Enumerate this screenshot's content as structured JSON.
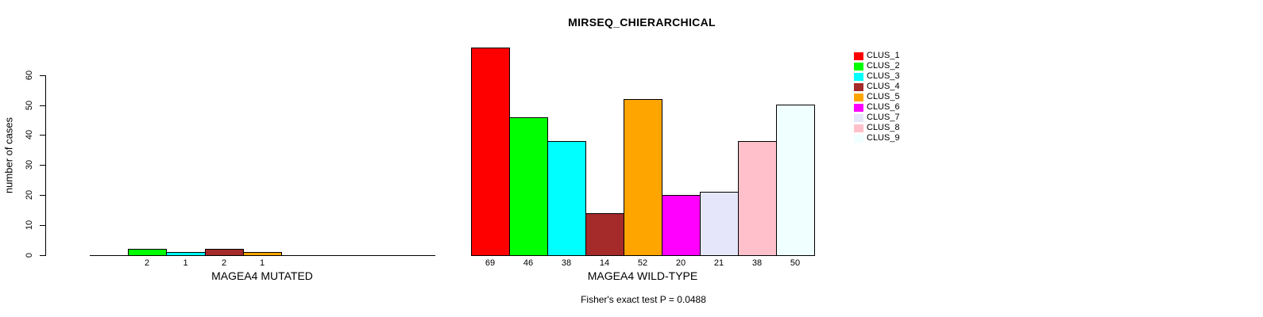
{
  "chart_data": {
    "type": "bar",
    "title": "MIRSEQ_CHIERARCHICAL",
    "ylabel": "number of cases",
    "ylim": [
      0,
      60
    ],
    "yticks": [
      0,
      10,
      20,
      30,
      40,
      50,
      60
    ],
    "grid": false,
    "legend_position": "right",
    "clusters": [
      "CLUS_1",
      "CLUS_2",
      "CLUS_3",
      "CLUS_4",
      "CLUS_5",
      "CLUS_6",
      "CLUS_7",
      "CLUS_8",
      "CLUS_9"
    ],
    "colors": [
      "#FF0000",
      "#00FF00",
      "#00FFFF",
      "#A52A2A",
      "#FFA500",
      "#FF00FF",
      "#E6E6FA",
      "#FFC0CB",
      "#F0FFFF"
    ],
    "groups": [
      {
        "label": "MAGEA4 MUTATED",
        "values": [
          0,
          2,
          1,
          2,
          1,
          0,
          0,
          0,
          0
        ]
      },
      {
        "label": "MAGEA4 WILD-TYPE",
        "values": [
          69,
          46,
          38,
          14,
          52,
          20,
          21,
          38,
          50
        ]
      }
    ],
    "bar_value_labels_note": "values printed under each nonzero bar",
    "annotation": "Fisher's exact test P = 0.0488"
  }
}
